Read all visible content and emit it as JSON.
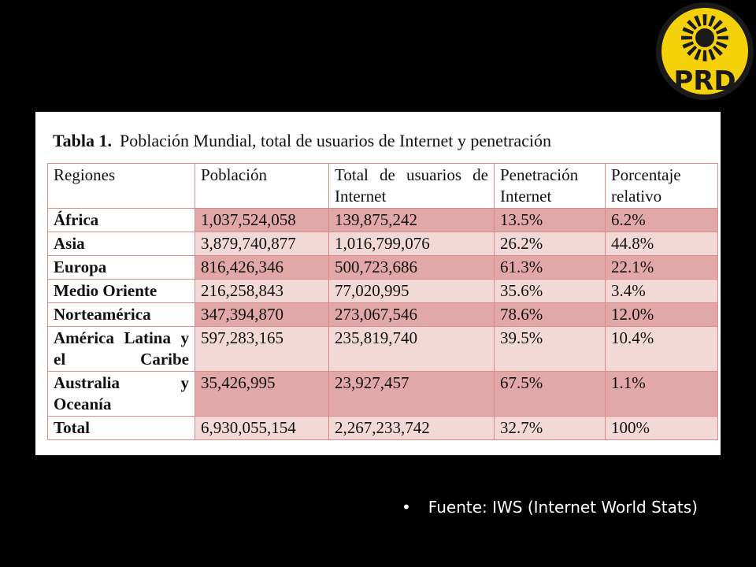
{
  "logo": {
    "text": "PRD",
    "colors": {
      "ring": "#1a1a1a",
      "fill": "#f5d10a"
    }
  },
  "table": {
    "label": "Tabla 1.",
    "title": "Población Mundial, total de usuarios de Internet y penetración",
    "headers": [
      "Regiones",
      "Población",
      "Total de usuarios de Internet",
      "Penetración Internet",
      "Porcentaje relativo"
    ],
    "rows": [
      {
        "region": "África",
        "poblacion": "1,037,524,058",
        "usuarios": "139,875,242",
        "penetracion": "13.5%",
        "porcentaje": "6.2%"
      },
      {
        "region": "Asia",
        "poblacion": "3,879,740,877",
        "usuarios": "1,016,799,076",
        "penetracion": "26.2%",
        "porcentaje": "44.8%"
      },
      {
        "region": "Europa",
        "poblacion": "816,426,346",
        "usuarios": "500,723,686",
        "penetracion": "61.3%",
        "porcentaje": "22.1%"
      },
      {
        "region": "Medio Oriente",
        "poblacion": "216,258,843",
        "usuarios": "77,020,995",
        "penetracion": "35.6%",
        "porcentaje": "3.4%"
      },
      {
        "region": "Norteamérica",
        "poblacion": "347,394,870",
        "usuarios": "273,067,546",
        "penetracion": "78.6%",
        "porcentaje": "12.0%"
      },
      {
        "region": "América Latina y el Caribe",
        "poblacion": "597,283,165",
        "usuarios": "235,819,740",
        "penetracion": "39.5%",
        "porcentaje": "10.4%"
      },
      {
        "region": "Australia y Oceanía",
        "poblacion": "35,426,995",
        "usuarios": "23,927,457",
        "penetracion": "67.5%",
        "porcentaje": "1.1%"
      },
      {
        "region": "Total",
        "poblacion": "6,930,055,154",
        "usuarios": "2,267,233,742",
        "penetracion": "32.7%",
        "porcentaje": "100%"
      }
    ],
    "colors": {
      "dark_row": "#e2a7a7",
      "light_row": "#f3d8d8",
      "border": "#d98a8a"
    }
  },
  "footnote": {
    "bullet": "•",
    "text": "Fuente: IWS (Internet World Stats)"
  }
}
